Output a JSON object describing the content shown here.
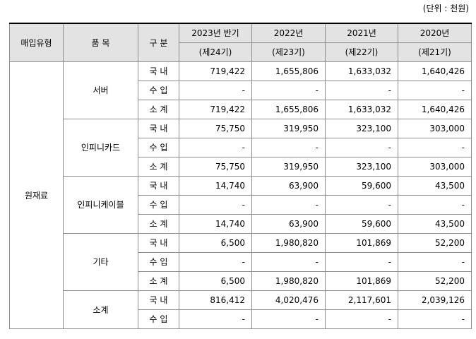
{
  "unit_label": "(단위 : 천원)",
  "headers": {
    "type": "매입유형",
    "item": "품 목",
    "division": "구 분",
    "periods": [
      {
        "year": "2023년 반기",
        "term": "(제24기)"
      },
      {
        "year": "2022년",
        "term": "(제23기)"
      },
      {
        "year": "2021년",
        "term": "(제22기)"
      },
      {
        "year": "2020년",
        "term": "(제21기)"
      }
    ]
  },
  "category": "원재료",
  "groups": [
    {
      "item": "서버",
      "rows": [
        {
          "sub": "국 내",
          "values": [
            "719,422",
            "1,655,806",
            "1,633,032",
            "1,640,426"
          ]
        },
        {
          "sub": "수 입",
          "values": [
            "-",
            "-",
            "-",
            "-"
          ]
        },
        {
          "sub": "소 계",
          "values": [
            "719,422",
            "1,655,806",
            "1,633,032",
            "1,640,426"
          ]
        }
      ]
    },
    {
      "item": "인피니카드",
      "rows": [
        {
          "sub": "국 내",
          "values": [
            "75,750",
            "319,950",
            "323,100",
            "303,000"
          ]
        },
        {
          "sub": "수 입",
          "values": [
            "-",
            "-",
            "-",
            "-"
          ]
        },
        {
          "sub": "소 계",
          "values": [
            "75,750",
            "319,950",
            "323,100",
            "303,000"
          ]
        }
      ]
    },
    {
      "item": "인피니케이블",
      "rows": [
        {
          "sub": "국 내",
          "values": [
            "14,740",
            "63,900",
            "59,600",
            "43,500"
          ]
        },
        {
          "sub": "수 입",
          "values": [
            "-",
            "-",
            "-",
            "-"
          ]
        },
        {
          "sub": "소 계",
          "values": [
            "14,740",
            "63,900",
            "59,600",
            "43,500"
          ]
        }
      ]
    },
    {
      "item": "기타",
      "rows": [
        {
          "sub": "국 내",
          "values": [
            "6,500",
            "1,980,820",
            "101,869",
            "52,200"
          ]
        },
        {
          "sub": "수 입",
          "values": [
            "-",
            "-",
            "-",
            "-"
          ]
        },
        {
          "sub": "소 계",
          "values": [
            "6,500",
            "1,980,820",
            "101,869",
            "52,200"
          ]
        }
      ]
    },
    {
      "item": "소계",
      "rows": [
        {
          "sub": "국 내",
          "values": [
            "816,412",
            "4,020,476",
            "2,117,601",
            "2,039,126"
          ]
        },
        {
          "sub": "수 입",
          "values": [
            "-",
            "-",
            "-",
            "-"
          ]
        }
      ]
    }
  ]
}
